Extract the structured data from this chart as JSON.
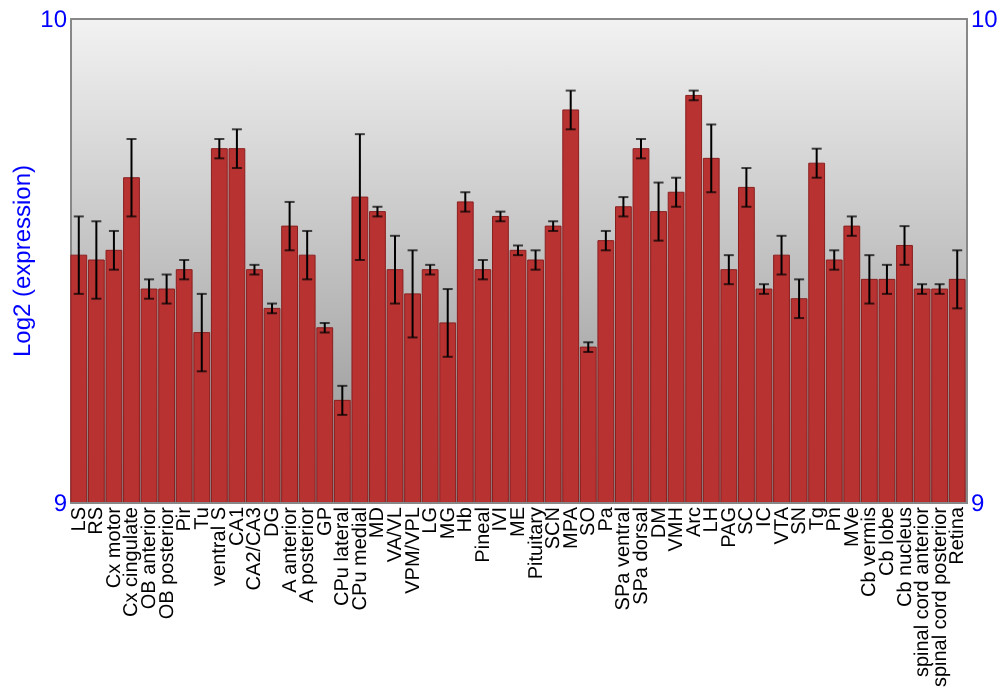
{
  "chart_data": {
    "type": "bar",
    "ylabel": "Log2 (expression)",
    "categories": [
      "LS",
      "RS",
      "Cx motor",
      "Cx cingulate",
      "OB anterior",
      "OB posterior",
      "Pir",
      "Tu",
      "ventral S",
      "CA1",
      "CA2/CA3",
      "DG",
      "A anterior",
      "A posterior",
      "GP",
      "CPu lateral",
      "CPu medial",
      "MD",
      "VA/VL",
      "VPM/VPL",
      "LG",
      "MG",
      "Hb",
      "Pineal",
      "IVI",
      "ME",
      "Pituitary",
      "SCN",
      "MPA",
      "SO",
      "Pa",
      "SPa ventral",
      "SPa dorsal",
      "DM",
      "VMH",
      "Arc",
      "LH",
      "PAG",
      "SC",
      "IC",
      "VTA",
      "SN",
      "Tg",
      "Pn",
      "MVe",
      "Cb vermis",
      "Cb lobe",
      "Cb nucleus",
      "spinal cord anterior",
      "spinal cord posterior",
      "Retina"
    ],
    "values": [
      9.51,
      9.5,
      9.52,
      9.67,
      9.44,
      9.44,
      9.48,
      9.35,
      9.73,
      9.73,
      9.48,
      9.4,
      9.57,
      9.51,
      9.36,
      9.21,
      9.63,
      9.6,
      9.48,
      9.43,
      9.48,
      9.37,
      9.62,
      9.48,
      9.59,
      9.52,
      9.5,
      9.57,
      9.81,
      9.32,
      9.54,
      9.61,
      9.73,
      9.6,
      9.64,
      9.84,
      9.71,
      9.48,
      9.65,
      9.44,
      9.51,
      9.42,
      9.7,
      9.5,
      9.57,
      9.46,
      9.46,
      9.53,
      9.44,
      9.44,
      9.46
    ],
    "errors": [
      0.08,
      0.08,
      0.04,
      0.08,
      0.02,
      0.03,
      0.02,
      0.08,
      0.02,
      0.04,
      0.01,
      0.01,
      0.05,
      0.05,
      0.01,
      0.03,
      0.13,
      0.01,
      0.07,
      0.09,
      0.01,
      0.07,
      0.02,
      0.02,
      0.01,
      0.01,
      0.02,
      0.01,
      0.04,
      0.01,
      0.02,
      0.02,
      0.02,
      0.06,
      0.03,
      0.01,
      0.07,
      0.03,
      0.04,
      0.01,
      0.04,
      0.04,
      0.03,
      0.02,
      0.02,
      0.05,
      0.03,
      0.04,
      0.01,
      0.01,
      0.06
    ],
    "color": "#b83232",
    "ylim": [
      9,
      10
    ],
    "yticks": [
      9,
      10
    ],
    "y2lim": [
      9,
      10
    ],
    "y2ticks": [
      9,
      10
    ],
    "grid": false
  }
}
